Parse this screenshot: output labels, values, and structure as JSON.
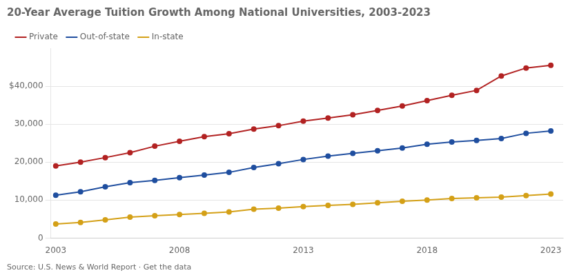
{
  "chart_data": {
    "type": "line",
    "title": "20-Year Average Tuition Growth Among National Universities, 2003-2023",
    "annotations": [
      "Source: U.S. News & World Report · Get the data"
    ],
    "x": [
      2003,
      2004,
      2005,
      2006,
      2007,
      2008,
      2009,
      2010,
      2011,
      2012,
      2013,
      2014,
      2015,
      2016,
      2017,
      2018,
      2019,
      2020,
      2021,
      2022,
      2023
    ],
    "series": [
      {
        "name": "Private",
        "color": "#b22222",
        "marker": "circle",
        "values": [
          19000,
          20000,
          21200,
          22500,
          24200,
          25500,
          26700,
          27500,
          28700,
          29600,
          30800,
          31600,
          32500,
          33600,
          34800,
          36200,
          37600,
          38900,
          42700,
          44800,
          45500
        ]
      },
      {
        "name": "Out-of-state",
        "color": "#1f4e9f",
        "marker": "circle",
        "values": [
          11300,
          12200,
          13500,
          14600,
          15200,
          15900,
          16600,
          17300,
          18600,
          19600,
          20700,
          21600,
          22300,
          23000,
          23700,
          24700,
          25300,
          25700,
          26200,
          27600,
          28200
        ]
      },
      {
        "name": "In-state",
        "color": "#d4a017",
        "marker": "circle",
        "values": [
          3700,
          4100,
          4800,
          5500,
          5900,
          6200,
          6500,
          6900,
          7600,
          7900,
          8300,
          8600,
          8900,
          9300,
          9700,
          10000,
          10400,
          10600,
          10800,
          11200,
          11600
        ]
      }
    ],
    "xlim": [
      2002.8,
      2023.5
    ],
    "xticks": [
      2003,
      2008,
      2013,
      2018,
      2023
    ],
    "ylim": [
      0,
      50000
    ],
    "yticks": [
      0,
      {
        "value": 10000,
        "label": "10,000"
      },
      {
        "value": 20000,
        "label": "20,000"
      },
      {
        "value": 30000,
        "label": "30,000"
      },
      {
        "value": 40000,
        "label": "$40,000"
      }
    ],
    "grid": "y",
    "legend": "top"
  }
}
